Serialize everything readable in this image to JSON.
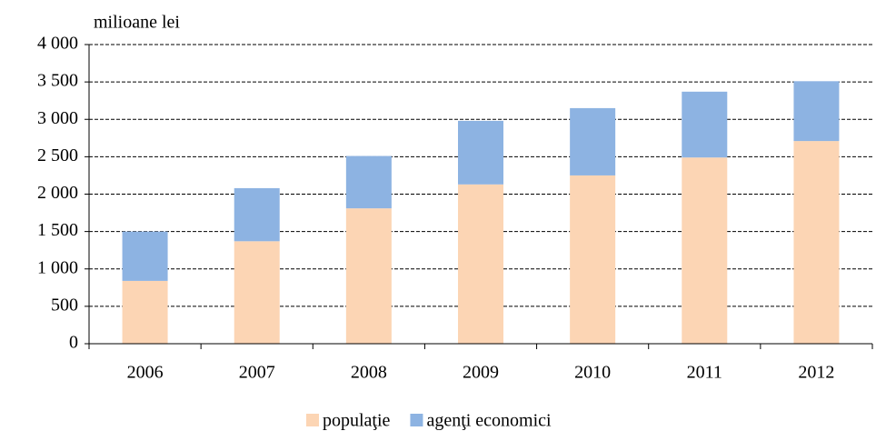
{
  "chart_data": {
    "type": "stacked_bar",
    "y_label": "milioane lei",
    "categories": [
      "2006",
      "2007",
      "2008",
      "2009",
      "2010",
      "2011",
      "2012"
    ],
    "series": [
      {
        "name": "populaţie",
        "color": "#fcd5b4",
        "values": [
          840,
          1370,
          1810,
          2130,
          2250,
          2490,
          2710
        ]
      },
      {
        "name": "agenţi economici",
        "color": "#8db3e2",
        "values": [
          660,
          710,
          700,
          850,
          900,
          880,
          800
        ]
      }
    ],
    "ylim": [
      0,
      4000
    ],
    "yticks": [
      0,
      500,
      {
        "value": 1000,
        "label": "1 000"
      },
      {
        "value": 1500,
        "label": "1 500"
      },
      {
        "value": 2000,
        "label": "2 000"
      },
      {
        "value": 2500,
        "label": "2 500"
      },
      {
        "value": 3000,
        "label": "3 000"
      },
      {
        "value": 3500,
        "label": "3 500"
      },
      {
        "value": 4000,
        "label": "4 000"
      }
    ],
    "grid": true,
    "legend": "bottom"
  }
}
